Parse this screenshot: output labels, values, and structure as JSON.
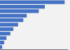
{
  "chart_data": {
    "type": "bar",
    "orientation": "horizontal",
    "categories": [
      null,
      null,
      null,
      null,
      null,
      null,
      null,
      null,
      null,
      null,
      null
    ],
    "values": [
      7500,
      5200,
      4500,
      3100,
      2700,
      2100,
      1550,
      1200,
      750,
      480,
      250
    ],
    "color": "#4472c4",
    "xlim": [
      0,
      7875
    ],
    "grid": false,
    "tick_labels": false
  }
}
